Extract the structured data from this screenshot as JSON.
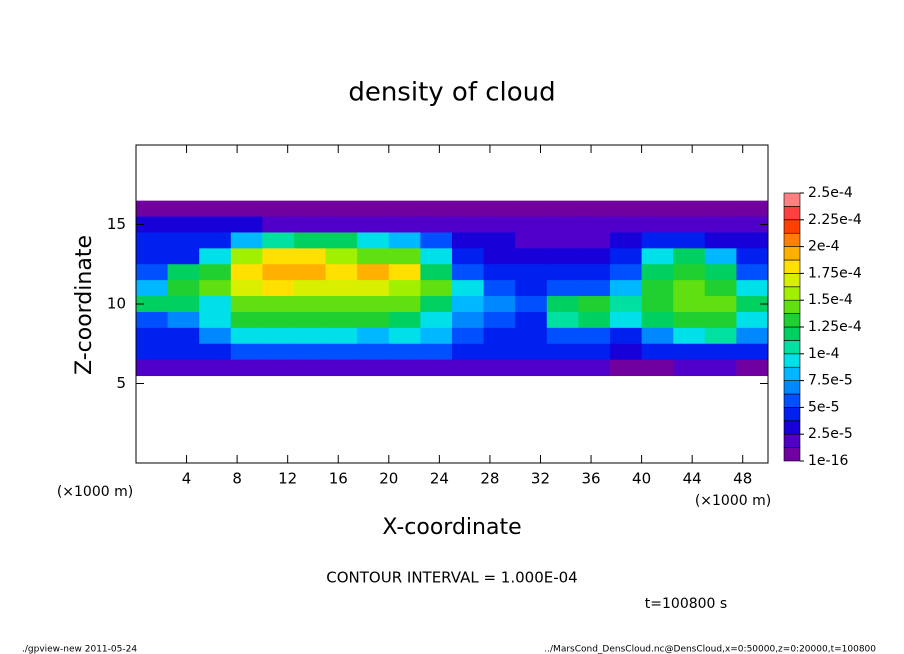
{
  "chart_data": {
    "type": "heatmap",
    "title": "density of cloud",
    "x_label": "X-coordinate",
    "y_label": "Z-coordinate",
    "x_unit_label": "(×1000 m)",
    "y_unit_label": "(×1000 m)",
    "contour_note": "CONTOUR INTERVAL = 1.000E-04",
    "time_note": "t=100800 s",
    "footer_left": "./gpview-new  2011-05-24",
    "footer_right": "../MarsCond_DensCloud.nc@DensCloud,x=0:50000,z=0:20000,t=100800",
    "xlim": [
      0,
      50
    ],
    "ylim": [
      0,
      20
    ],
    "xticks": [
      4,
      8,
      12,
      16,
      20,
      24,
      28,
      32,
      36,
      40,
      44,
      48
    ],
    "yticks": [
      5,
      10,
      15
    ],
    "x": [
      1.25,
      3.75,
      6.25,
      8.75,
      11.25,
      13.75,
      16.25,
      18.75,
      21.25,
      23.75,
      26.25,
      28.75,
      31.25,
      33.75,
      36.25,
      38.75,
      41.25,
      43.75,
      46.25,
      48.75
    ],
    "y": [
      16,
      15,
      14,
      13,
      12,
      11,
      10,
      9,
      8,
      7,
      6
    ],
    "z": [
      [
        8e-06,
        8e-06,
        8e-06,
        8e-06,
        8e-06,
        8e-06,
        8e-06,
        8e-06,
        8e-06,
        8e-06,
        8e-06,
        8e-06,
        8e-06,
        8e-06,
        8e-06,
        8e-06,
        8e-06,
        8e-06,
        8e-06,
        8e-06
      ],
      [
        3e-05,
        3e-05,
        3e-05,
        3e-05,
        2e-05,
        2e-05,
        2e-05,
        2e-05,
        2e-05,
        2e-05,
        2e-05,
        2e-05,
        2e-05,
        2e-05,
        2e-05,
        2e-05,
        2e-05,
        2e-05,
        2e-05,
        2e-05
      ],
      [
        4e-05,
        5e-05,
        5e-05,
        8e-05,
        0.00011,
        0.00012,
        0.00012,
        0.0001,
        8e-05,
        6e-05,
        3e-05,
        3e-05,
        2.5e-05,
        2.5e-05,
        2.5e-05,
        3e-05,
        4e-05,
        4e-05,
        3e-05,
        3e-05
      ],
      [
        5e-05,
        5e-05,
        0.0001,
        0.00016,
        0.00018,
        0.00018,
        0.00016,
        0.00015,
        0.00014,
        0.0001,
        4e-05,
        3e-05,
        3e-05,
        3e-05,
        3e-05,
        4e-05,
        0.0001,
        0.00012,
        8e-05,
        5e-05
      ],
      [
        6e-05,
        0.00012,
        0.00013,
        0.00018,
        0.00019,
        0.00019,
        0.00018,
        0.00019,
        0.00018,
        0.00012,
        6e-05,
        4e-05,
        4e-05,
        4e-05,
        4e-05,
        6e-05,
        0.00012,
        0.00013,
        0.00012,
        6e-05
      ],
      [
        8e-05,
        0.00013,
        0.00014,
        0.00017,
        0.00018,
        0.00017,
        0.00017,
        0.00017,
        0.00016,
        0.00014,
        9e-05,
        6e-05,
        5e-05,
        6e-05,
        6e-05,
        8e-05,
        0.00013,
        0.00014,
        0.00013,
        9e-05
      ],
      [
        0.00012,
        0.00012,
        0.0001,
        0.00014,
        0.00015,
        0.00015,
        0.00015,
        0.00015,
        0.00014,
        0.00012,
        8e-05,
        7e-05,
        6e-05,
        0.00012,
        0.00013,
        0.00011,
        0.00013,
        0.00014,
        0.00014,
        0.00012
      ],
      [
        6e-05,
        7e-05,
        9e-05,
        0.00013,
        0.00013,
        0.00013,
        0.00013,
        0.00013,
        0.00012,
        0.0001,
        7e-05,
        6e-05,
        5e-05,
        0.00011,
        0.00012,
        9e-05,
        0.00012,
        0.00013,
        0.00013,
        0.0001
      ],
      [
        5e-05,
        5e-05,
        7e-05,
        9e-05,
        9e-05,
        9e-05,
        9e-05,
        8e-05,
        9e-05,
        8e-05,
        6e-05,
        5e-05,
        5e-05,
        6e-05,
        6e-05,
        5e-05,
        7e-05,
        0.0001,
        0.00011,
        7e-05
      ],
      [
        4e-05,
        4e-05,
        5e-05,
        6e-05,
        6e-05,
        6e-05,
        6e-05,
        6e-05,
        6e-05,
        6e-05,
        5e-05,
        4e-05,
        4e-05,
        4e-05,
        4e-05,
        3e-05,
        4e-05,
        5e-05,
        5e-05,
        4e-05
      ],
      [
        1.5e-05,
        1.5e-05,
        2e-05,
        2e-05,
        2e-05,
        2e-05,
        2e-05,
        2e-05,
        2e-05,
        2e-05,
        2e-05,
        2e-05,
        1.5e-05,
        1.5e-05,
        1.5e-05,
        1e-05,
        1e-05,
        1.5e-05,
        1.5e-05,
        1e-05
      ]
    ],
    "colorbar": {
      "ticks": [
        {
          "value": 1e-16,
          "label": "1e-16"
        },
        {
          "value": 2.5e-05,
          "label": "2.5e-5"
        },
        {
          "value": 5e-05,
          "label": "5e-5"
        },
        {
          "value": 7.5e-05,
          "label": "7.5e-5"
        },
        {
          "value": 0.0001,
          "label": "1e-4"
        },
        {
          "value": 0.000125,
          "label": "1.25e-4"
        },
        {
          "value": 0.00015,
          "label": "1.5e-4"
        },
        {
          "value": 0.000175,
          "label": "1.75e-4"
        },
        {
          "value": 0.0002,
          "label": "2e-4"
        },
        {
          "value": 0.000225,
          "label": "2.25e-4"
        },
        {
          "value": 0.00025,
          "label": "2.5e-4"
        }
      ],
      "colors": [
        "#7000a0",
        "#5000c8",
        "#1800d8",
        "#0020f0",
        "#0050ff",
        "#0088ff",
        "#00b8ff",
        "#00e0e8",
        "#00e0a0",
        "#00d060",
        "#20d030",
        "#60e010",
        "#a0f000",
        "#d8f000",
        "#ffe000",
        "#ffb000",
        "#ff8000",
        "#ff4000",
        "#ff4040",
        "#ff8080"
      ]
    }
  }
}
